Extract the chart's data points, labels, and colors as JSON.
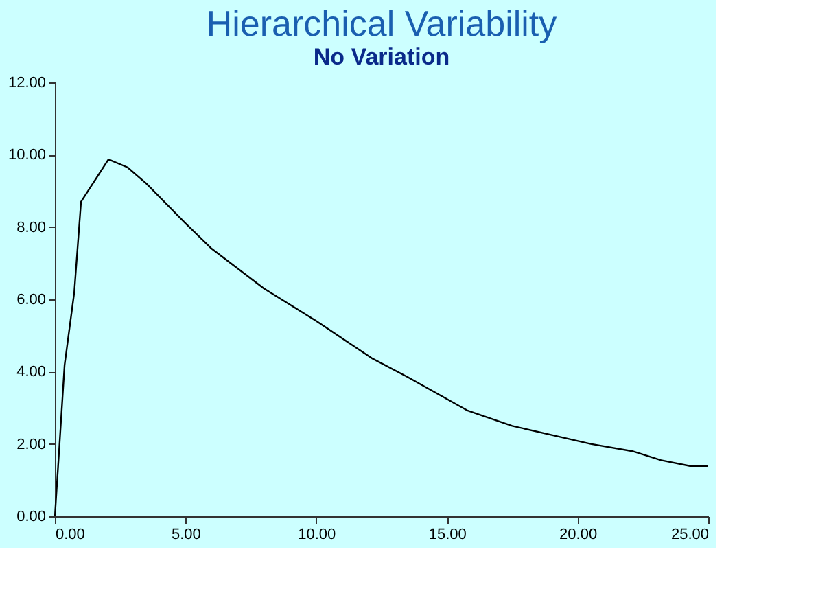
{
  "chart_data": {
    "type": "line",
    "title": "Hierarchical Variability",
    "subtitle": "No Variation",
    "x": [
      0,
      0.37,
      0.74,
      1.0,
      2.05,
      2.78,
      3.5,
      5.0,
      6.0,
      7.0,
      8.0,
      10.0,
      10.56,
      12.13,
      13.5,
      15.8,
      17.5,
      19.3,
      20.5,
      22.1,
      23.2,
      24.3,
      25.0
    ],
    "series": [
      {
        "color": "#000000",
        "values": [
          0,
          4.18,
          6.19,
          8.7,
          9.87,
          9.65,
          9.2,
          8.1,
          7.4,
          6.85,
          6.3,
          5.4,
          5.13,
          4.37,
          3.85,
          2.92,
          2.5,
          2.2,
          2.0,
          1.8,
          1.55,
          1.39,
          1.39
        ]
      }
    ],
    "xlim": [
      0,
      25
    ],
    "xticks": [
      {
        "value": 0,
        "label": "0.00"
      },
      {
        "value": 5,
        "label": "5.00"
      },
      {
        "value": 10,
        "label": "10.00"
      },
      {
        "value": 15,
        "label": "15.00"
      },
      {
        "value": 20,
        "label": "20.00"
      },
      {
        "value": 25,
        "label": "25.00"
      }
    ],
    "ylim": [
      0,
      12
    ],
    "yticks": [
      {
        "value": 0,
        "label": "0.00"
      },
      {
        "value": 2,
        "label": "2.00"
      },
      {
        "value": 4,
        "label": "4.00"
      },
      {
        "value": 6,
        "label": "6.00"
      },
      {
        "value": 8,
        "label": "8.00"
      },
      {
        "value": 10,
        "label": "10.00"
      },
      {
        "value": 12,
        "label": "12.00"
      }
    ],
    "grid": false,
    "legend": false,
    "marker": "none",
    "line_style": "solid"
  }
}
